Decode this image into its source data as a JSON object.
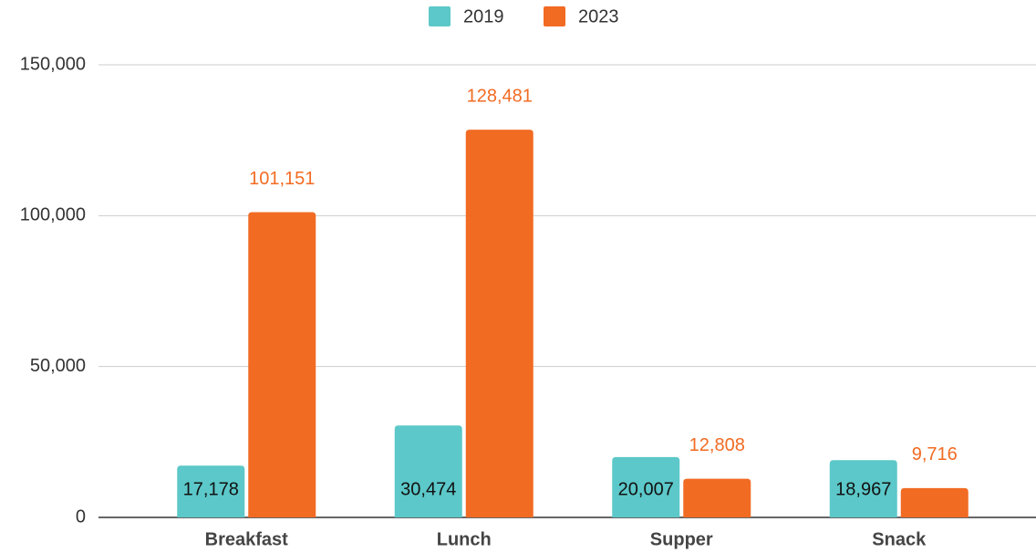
{
  "chart_data": {
    "type": "bar",
    "categories": [
      "Breakfast",
      "Lunch",
      "Supper",
      "Snack"
    ],
    "series": [
      {
        "name": "2019",
        "color": "#5cc8c9",
        "values": [
          17178,
          30474,
          20007,
          18967
        ],
        "value_labels": [
          "17,178",
          "30,474",
          "20,007",
          "18,967"
        ]
      },
      {
        "name": "2023",
        "color": "#f26b23",
        "values": [
          101151,
          128481,
          12808,
          9716
        ],
        "value_labels": [
          "101,151",
          "128,481",
          "12,808",
          "9,716"
        ]
      }
    ],
    "ylim": [
      0,
      150000
    ],
    "yticks": [
      0,
      {
        "value": 50000,
        "label": "50,000"
      },
      {
        "value": 100000,
        "label": "100,000"
      },
      {
        "value": 150000,
        "label": "150,000"
      }
    ],
    "grid": true,
    "legend": "top"
  }
}
